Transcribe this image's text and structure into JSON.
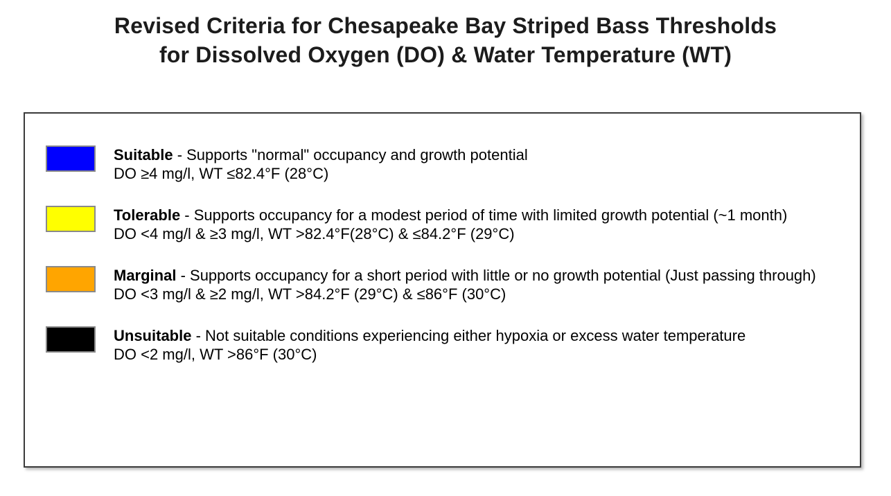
{
  "title": {
    "line1": "Revised Criteria for Chesapeake Bay Striped Bass Thresholds",
    "line2": "for Dissolved Oxygen (DO) & Water Temperature (WT)"
  },
  "legend": {
    "items": [
      {
        "label": "Suitable",
        "desc": " - Supports \"normal\" occupancy and growth potential",
        "criteria": "DO ≥4 mg/l, WT ≤82.4°F (28°C)",
        "color": "#0000ff",
        "color_name": "blue"
      },
      {
        "label": "Tolerable",
        "desc": " - Supports occupancy for a modest period of time with limited growth potential (~1 month)",
        "criteria": "DO <4 mg/l & ≥3 mg/l, WT >82.4°F(28°C) & ≤84.2°F (29°C)",
        "color": "#ffff00",
        "color_name": "yellow"
      },
      {
        "label": "Marginal",
        "desc": " - Supports occupancy for a short period with little or no growth potential (Just passing through)",
        "criteria": "DO <3 mg/l & ≥2 mg/l, WT >84.2°F (29°C) & ≤86°F (30°C)",
        "color": "#ffa500",
        "color_name": "orange"
      },
      {
        "label": "Unsuitable",
        "desc": " - Not suitable conditions experiencing either hypoxia or excess water temperature",
        "criteria": "DO <2 mg/l, WT >86°F (30°C)",
        "color": "#000000",
        "color_name": "black"
      }
    ]
  },
  "colors": {
    "background": "#ffffff",
    "box_border": "#3a3a3a",
    "swatch_border": "#8a8a8a",
    "title_text": "#1c1c1c",
    "body_text": "#000000"
  }
}
